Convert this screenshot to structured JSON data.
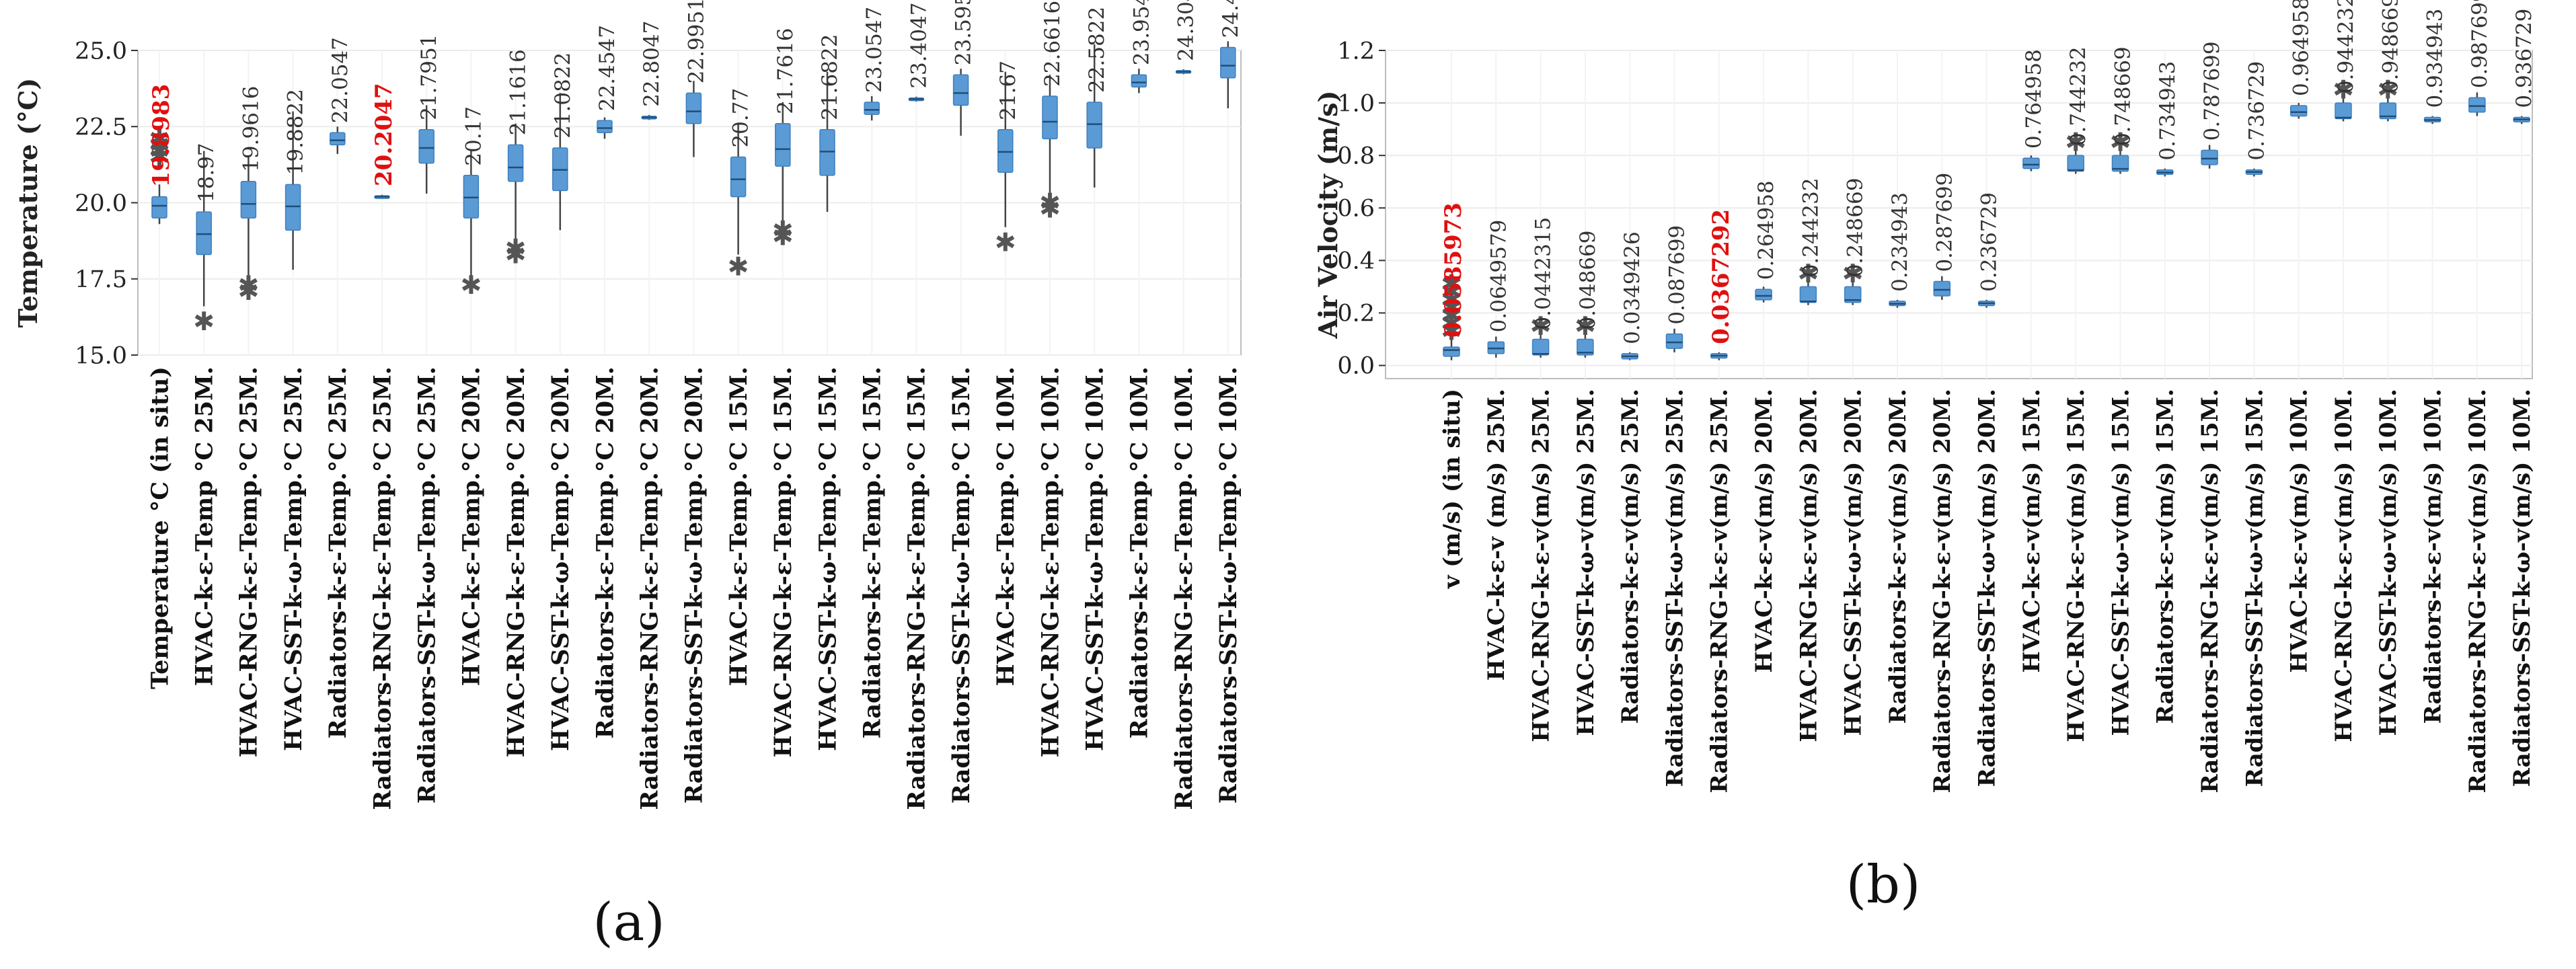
{
  "panels": [
    {
      "caption": "(a)"
    },
    {
      "caption": "(b)"
    }
  ],
  "colors": {
    "box": "#5b9bd5",
    "highlight": "#e01010",
    "outlier": "#555555"
  },
  "chart_data": [
    {
      "type": "box",
      "ylabel": "Temperature (°C)",
      "ylim": [
        15.0,
        25.0
      ],
      "yticks": [
        "15.0",
        "17.5",
        "20.0",
        "22.5",
        "25.0"
      ],
      "grid": true,
      "categories": [
        "Temperature °C (in situ)",
        "HVAC-k-ε-Temp °C 25M.",
        "HVAC-RNG-k-ε-Temp.°C 25M.",
        "HVAC-SST-k-ω-Temp.°C 25M.",
        "Radiators-k-ε-Temp.°C 25M.",
        "Radiators-RNG-k-ε-Temp.°C 25M.",
        "Radiators-SST-k-ω-Temp.°C 25M.",
        "HVAC-k-ε-Temp.°C 20M.",
        "HVAC-RNG-k-ε-Temp.°C 20M.",
        "HVAC-SST-k-ω-Temp.°C 20M.",
        "Radiators-k-ε-Temp.°C 20M.",
        "Radiators-RNG-k-ε-Temp.°C 20M.",
        "Radiators-SST-k-ω-Temp.°C 20M.",
        "HVAC-k-ε-Temp.°C 15M.",
        "HVAC-RNG-k-ε-Temp.°C 15M.",
        "HVAC-SST-k-ω-Temp.°C 15M.",
        "Radiators-k-ε-Temp.°C 15M.",
        "Radiators-RNG-k-ε-Temp.°C 15M.",
        "Radiators-SST-k-ω-Temp.°C 15M.",
        "HVAC-k-ε-Temp.°C 10M.",
        "HVAC-RNG-k-ε-Temp.°C 10M.",
        "HVAC-SST-k-ω-Temp.°C 10M.",
        "Radiators-k-ε-Temp.°C 10M.",
        "Radiators-RNG-k-ε-Temp.°C 10M.",
        "Radiators-SST-k-ω-Temp.°C 10M."
      ],
      "annotations": [
        "19.8983",
        "18.97",
        "19.9616",
        "19.8822",
        "22.0547",
        "20.2047",
        "21.7951",
        "20.17",
        "21.1616",
        "21.0822",
        "22.4547",
        "22.8047",
        "22.9951",
        "20.77",
        "21.7616",
        "21.6822",
        "23.0547",
        "23.4047",
        "23.5951",
        "21.67",
        "22.6616",
        "22.5822",
        "23.9547",
        "24.3047",
        "24.4951"
      ],
      "highlighted": [
        0,
        5
      ],
      "boxes": [
        {
          "min": 19.3,
          "q1": 19.5,
          "median": 19.9,
          "q3": 20.2,
          "max": 20.6,
          "outliers": [
            21.5,
            21.7,
            21.9,
            22.1
          ]
        },
        {
          "min": 16.6,
          "q1": 18.3,
          "median": 18.97,
          "q3": 19.7,
          "max": 21.7,
          "outliers": [
            16.1
          ]
        },
        {
          "min": 17.6,
          "q1": 19.5,
          "median": 19.96,
          "q3": 20.7,
          "max": 21.5,
          "outliers": [
            17.1,
            17.3
          ]
        },
        {
          "min": 17.8,
          "q1": 19.1,
          "median": 19.88,
          "q3": 20.6,
          "max": 23.0,
          "outliers": []
        },
        {
          "min": 21.6,
          "q1": 21.9,
          "median": 22.05,
          "q3": 22.3,
          "max": 22.5,
          "outliers": []
        },
        {
          "min": 20.15,
          "q1": 20.18,
          "median": 20.2,
          "q3": 20.23,
          "max": 20.26,
          "outliers": []
        },
        {
          "min": 20.3,
          "q1": 21.3,
          "median": 21.8,
          "q3": 22.4,
          "max": 23.2,
          "outliers": []
        },
        {
          "min": 17.6,
          "q1": 19.5,
          "median": 20.17,
          "q3": 20.9,
          "max": 21.7,
          "outliers": [
            17.3
          ]
        },
        {
          "min": 18.7,
          "q1": 20.7,
          "median": 21.16,
          "q3": 21.9,
          "max": 22.6,
          "outliers": [
            18.3,
            18.5
          ]
        },
        {
          "min": 19.1,
          "q1": 20.4,
          "median": 21.08,
          "q3": 21.8,
          "max": 23.6,
          "outliers": []
        },
        {
          "min": 22.1,
          "q1": 22.3,
          "median": 22.45,
          "q3": 22.7,
          "max": 22.8,
          "outliers": []
        },
        {
          "min": 22.72,
          "q1": 22.76,
          "median": 22.8,
          "q3": 22.84,
          "max": 22.88,
          "outliers": []
        },
        {
          "min": 21.5,
          "q1": 22.6,
          "median": 23.0,
          "q3": 23.6,
          "max": 24.0,
          "outliers": []
        },
        {
          "min": 18.3,
          "q1": 20.2,
          "median": 20.77,
          "q3": 21.5,
          "max": 22.6,
          "outliers": [
            17.9
          ]
        },
        {
          "min": 19.3,
          "q1": 21.2,
          "median": 21.76,
          "q3": 22.6,
          "max": 23.3,
          "outliers": [
            18.9,
            19.1
          ]
        },
        {
          "min": 19.7,
          "q1": 20.9,
          "median": 21.68,
          "q3": 22.4,
          "max": 24.3,
          "outliers": []
        },
        {
          "min": 22.7,
          "q1": 22.9,
          "median": 23.05,
          "q3": 23.3,
          "max": 23.5,
          "outliers": []
        },
        {
          "min": 23.32,
          "q1": 23.37,
          "median": 23.4,
          "q3": 23.44,
          "max": 23.48,
          "outliers": []
        },
        {
          "min": 22.2,
          "q1": 23.2,
          "median": 23.6,
          "q3": 24.2,
          "max": 24.4,
          "outliers": []
        },
        {
          "min": 19.2,
          "q1": 21.0,
          "median": 21.67,
          "q3": 22.4,
          "max": 24.3,
          "outliers": [
            18.7
          ]
        },
        {
          "min": 20.3,
          "q1": 22.1,
          "median": 22.66,
          "q3": 23.5,
          "max": 24.2,
          "outliers": [
            19.8,
            20.0
          ]
        },
        {
          "min": 20.5,
          "q1": 21.8,
          "median": 22.58,
          "q3": 23.3,
          "max": 25.2,
          "outliers": []
        },
        {
          "min": 23.6,
          "q1": 23.8,
          "median": 23.95,
          "q3": 24.2,
          "max": 24.4,
          "outliers": []
        },
        {
          "min": 24.22,
          "q1": 24.27,
          "median": 24.3,
          "q3": 24.34,
          "max": 24.38,
          "outliers": []
        },
        {
          "min": 23.1,
          "q1": 24.1,
          "median": 24.5,
          "q3": 25.1,
          "max": 25.3,
          "outliers": []
        }
      ]
    },
    {
      "type": "box",
      "ylabel": "Air Velocity  (m/s)",
      "ylim": [
        -0.05,
        1.2
      ],
      "yticks": [
        "0.0",
        "0.2",
        "0.4",
        "0.6",
        "0.8",
        "1.0",
        "1.2"
      ],
      "grid": true,
      "categories": [
        "v (m/s) (in situ)",
        "HVAC-k-ε-v (m/s) 25M.",
        "HVAC-RNG-k-ε-v(m/s) 25M.",
        "HVAC-SST-k-ω-v(m/s) 25M.",
        "Radiators-k-ε-v(m/s) 25M.",
        "Radiators-SST-k-ω-v(m/s) 25M.",
        "Radiators-RNG-k-ε-v(m/s) 25M.",
        "HVAC-k-ε-v(m/s) 20M.",
        "HVAC-RNG-k-ε-v(m/s) 20M.",
        "HVAC-SST-k-ω-v(m/s) 20M.",
        "Radiators-k-ε-v(m/s) 20M.",
        "Radiators-RNG-k-ε-v(m/s) 20M.",
        "Radiators-SST-k-ω-v(m/s) 20M.",
        "HVAC-k-ε-v(m/s) 15M.",
        "HVAC-RNG-k-ε-v(m/s) 15M.",
        "HVAC-SST-k-ω-v(m/s) 15M.",
        "Radiators-k-ε-v(m/s) 15M.",
        "Radiators-RNG-k-ε-v(m/s) 15M.",
        "Radiators-SST-k-ω-v(m/s) 15M.",
        "HVAC-k-ε-v(m/s) 10M.",
        "HVAC-RNG-k-ε-v(m/s) 10M.",
        "HVAC-SST-k-ω-v(m/s) 10M.",
        "Radiators-k-ε-v(m/s) 10M.",
        "Radiators-RNG-k-ε-v(m/s) 10M.",
        "Radiators-SST-k-ω-v(m/s) 10M."
      ],
      "annotations": [
        "0.0585973",
        "0.0649579",
        "0.0442315",
        "0.048669",
        "0.0349426",
        "0.087699",
        "0.0367292",
        "0.264958",
        "0.244232",
        "0.248669",
        "0.234943",
        "0.287699",
        "0.236729",
        "0.764958",
        "0.744232",
        "0.748669",
        "0.734943",
        "0.787699",
        "0.736729",
        "0.964958",
        "0.944232",
        "0.948669",
        "0.934943",
        "0.987699",
        "0.936729"
      ],
      "highlighted": [
        0,
        6
      ],
      "boxes": [
        {
          "min": 0.02,
          "q1": 0.035,
          "median": 0.0586,
          "q3": 0.07,
          "max": 0.1,
          "outliers": [
            0.13,
            0.16,
            0.19,
            0.22,
            0.25,
            0.28,
            0.31
          ]
        },
        {
          "min": 0.03,
          "q1": 0.045,
          "median": 0.065,
          "q3": 0.09,
          "max": 0.11,
          "outliers": []
        },
        {
          "min": 0.03,
          "q1": 0.04,
          "median": 0.044,
          "q3": 0.1,
          "max": 0.12,
          "outliers": [
            0.15
          ]
        },
        {
          "min": 0.03,
          "q1": 0.04,
          "median": 0.049,
          "q3": 0.1,
          "max": 0.12,
          "outliers": [
            0.15
          ]
        },
        {
          "min": 0.02,
          "q1": 0.025,
          "median": 0.035,
          "q3": 0.045,
          "max": 0.05,
          "outliers": []
        },
        {
          "min": 0.05,
          "q1": 0.065,
          "median": 0.088,
          "q3": 0.12,
          "max": 0.14,
          "outliers": []
        },
        {
          "min": 0.02,
          "q1": 0.028,
          "median": 0.037,
          "q3": 0.045,
          "max": 0.05,
          "outliers": []
        },
        {
          "min": 0.24,
          "q1": 0.25,
          "median": 0.265,
          "q3": 0.29,
          "max": 0.3,
          "outliers": []
        },
        {
          "min": 0.23,
          "q1": 0.24,
          "median": 0.244,
          "q3": 0.3,
          "max": 0.32,
          "outliers": [
            0.35
          ]
        },
        {
          "min": 0.23,
          "q1": 0.24,
          "median": 0.249,
          "q3": 0.3,
          "max": 0.32,
          "outliers": [
            0.35
          ]
        },
        {
          "min": 0.22,
          "q1": 0.228,
          "median": 0.235,
          "q3": 0.245,
          "max": 0.25,
          "outliers": []
        },
        {
          "min": 0.25,
          "q1": 0.265,
          "median": 0.288,
          "q3": 0.32,
          "max": 0.34,
          "outliers": []
        },
        {
          "min": 0.22,
          "q1": 0.228,
          "median": 0.237,
          "q3": 0.245,
          "max": 0.25,
          "outliers": []
        },
        {
          "min": 0.74,
          "q1": 0.75,
          "median": 0.765,
          "q3": 0.79,
          "max": 0.8,
          "outliers": []
        },
        {
          "min": 0.73,
          "q1": 0.74,
          "median": 0.744,
          "q3": 0.8,
          "max": 0.82,
          "outliers": [
            0.85
          ]
        },
        {
          "min": 0.73,
          "q1": 0.74,
          "median": 0.749,
          "q3": 0.8,
          "max": 0.82,
          "outliers": [
            0.85
          ]
        },
        {
          "min": 0.72,
          "q1": 0.728,
          "median": 0.735,
          "q3": 0.745,
          "max": 0.75,
          "outliers": []
        },
        {
          "min": 0.75,
          "q1": 0.765,
          "median": 0.788,
          "q3": 0.82,
          "max": 0.84,
          "outliers": []
        },
        {
          "min": 0.72,
          "q1": 0.728,
          "median": 0.737,
          "q3": 0.745,
          "max": 0.75,
          "outliers": []
        },
        {
          "min": 0.94,
          "q1": 0.95,
          "median": 0.965,
          "q3": 0.99,
          "max": 1.0,
          "outliers": []
        },
        {
          "min": 0.93,
          "q1": 0.94,
          "median": 0.944,
          "q3": 1.0,
          "max": 1.02,
          "outliers": [
            1.05
          ]
        },
        {
          "min": 0.93,
          "q1": 0.94,
          "median": 0.949,
          "q3": 1.0,
          "max": 1.02,
          "outliers": [
            1.05
          ]
        },
        {
          "min": 0.92,
          "q1": 0.928,
          "median": 0.935,
          "q3": 0.945,
          "max": 0.95,
          "outliers": []
        },
        {
          "min": 0.95,
          "q1": 0.965,
          "median": 0.988,
          "q3": 1.02,
          "max": 1.04,
          "outliers": []
        },
        {
          "min": 0.92,
          "q1": 0.928,
          "median": 0.937,
          "q3": 0.945,
          "max": 0.95,
          "outliers": []
        }
      ]
    }
  ]
}
